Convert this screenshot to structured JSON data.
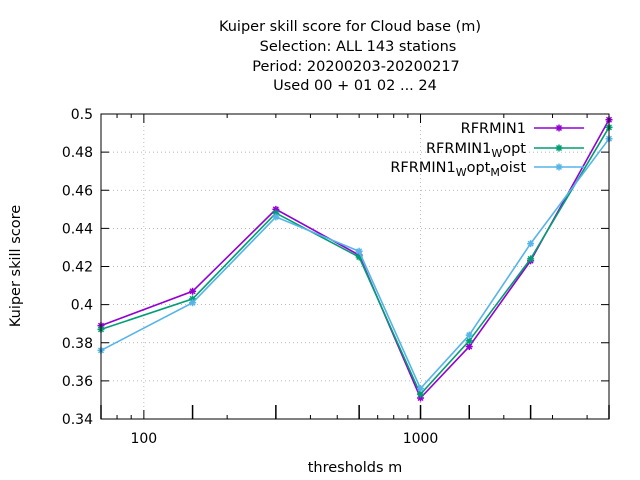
{
  "chart_data": {
    "type": "line",
    "title_lines": [
      "Kuiper skill score  for Cloud base (m)",
      "Selection: ALL    143 stations",
      "Period: 20200203-20200217",
      "Used  00 + 01 02 ... 24"
    ],
    "xlabel": "thresholds m",
    "ylabel": "Kuiper skill score",
    "x_scale": "log",
    "xlim": [
      70,
      4800
    ],
    "ylim": [
      0.34,
      0.5
    ],
    "x_ticks": [
      {
        "value": 100,
        "label": "100"
      },
      {
        "value": 1000,
        "label": "1000"
      }
    ],
    "y_ticks": [
      {
        "value": 0.34,
        "label": "0.34"
      },
      {
        "value": 0.36,
        "label": "0.36"
      },
      {
        "value": 0.38,
        "label": "0.38"
      },
      {
        "value": 0.4,
        "label": "0.4"
      },
      {
        "value": 0.42,
        "label": "0.42"
      },
      {
        "value": 0.44,
        "label": "0.44"
      },
      {
        "value": 0.46,
        "label": "0.46"
      },
      {
        "value": 0.48,
        "label": "0.48"
      },
      {
        "value": 0.5,
        "label": "0.5"
      }
    ],
    "grid": true,
    "legend_position": "top-right",
    "x": [
      70,
      150,
      300,
      600,
      1000,
      1500,
      2500,
      4800
    ],
    "series": [
      {
        "name": "RFRMIN1",
        "name_parts": [
          {
            "t": "RFRMIN1",
            "sub": false
          }
        ],
        "color": "#9400d3",
        "values": [
          0.389,
          0.407,
          0.45,
          0.426,
          0.351,
          0.378,
          0.423,
          0.497
        ]
      },
      {
        "name": "RFRMIN1_W opt",
        "name_parts": [
          {
            "t": "RFRMIN1",
            "sub": false
          },
          {
            "t": "W",
            "sub": true
          },
          {
            "t": "opt",
            "sub": false
          }
        ],
        "color": "#009e73",
        "values": [
          0.387,
          0.403,
          0.448,
          0.425,
          0.353,
          0.381,
          0.424,
          0.493
        ]
      },
      {
        "name": "RFRMIN1_W opt_M oist",
        "name_parts": [
          {
            "t": "RFRMIN1",
            "sub": false
          },
          {
            "t": "W",
            "sub": true
          },
          {
            "t": "opt",
            "sub": false
          },
          {
            "t": "M",
            "sub": true
          },
          {
            "t": "oist",
            "sub": false
          }
        ],
        "color": "#56b4e9",
        "values": [
          0.376,
          0.401,
          0.446,
          0.428,
          0.356,
          0.384,
          0.432,
          0.487
        ]
      }
    ]
  }
}
